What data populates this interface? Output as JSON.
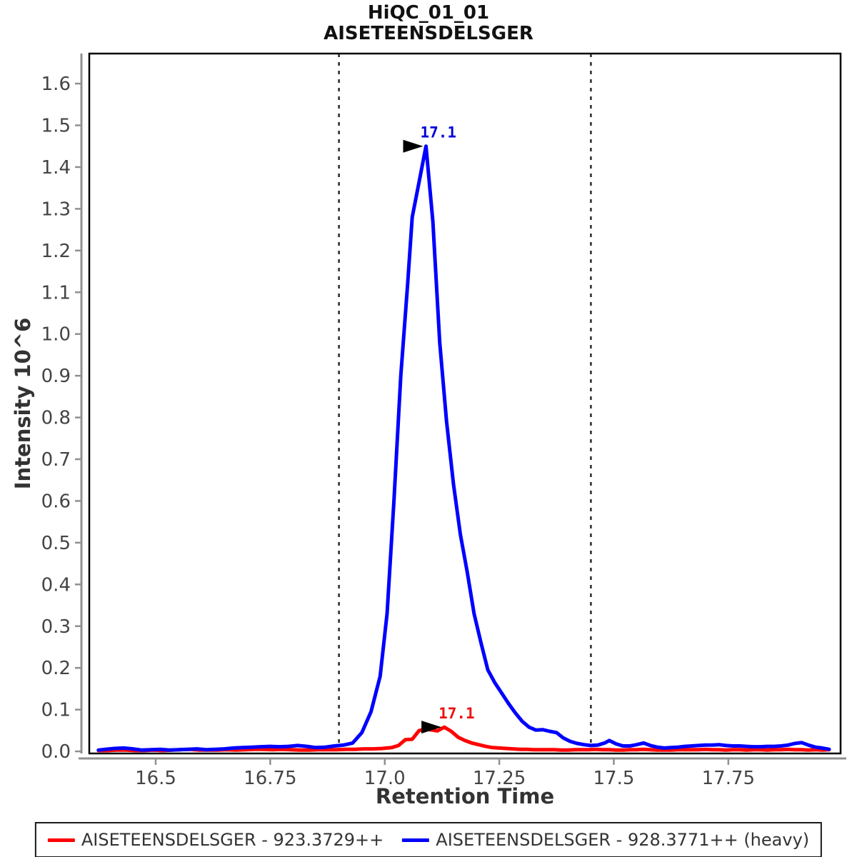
{
  "title": {
    "line1": "HiQC_01_01",
    "line2": "AISETEENSDELSGER"
  },
  "legend": {
    "items": [
      {
        "label": "AISETEENSDELSGER - 923.3729++",
        "color": "#FF0000"
      },
      {
        "label": "AISETEENSDELSGER - 928.3771++ (heavy)",
        "color": "#0000FF"
      }
    ]
  },
  "colors": {
    "light_trace": "#FF0000",
    "heavy_trace": "#0000FF",
    "axis_line": "#909090",
    "tick_text": "#444444",
    "plot_border": "#000000",
    "boundary_line": "#2a2a2a",
    "arrow": "#000000"
  },
  "chart_data": {
    "type": "line",
    "title": "HiQC_01_01 AISETEENSDELSGER",
    "xlabel": "Retention Time",
    "ylabel": "Intensity 10^6",
    "xlim": [
      16.355,
      17.995
    ],
    "ylim": [
      -0.005,
      1.672
    ],
    "grid": false,
    "legend_position": "bottom",
    "x_ticks": {
      "values": [
        16.5,
        16.75,
        17.0,
        17.25,
        17.5,
        17.75
      ],
      "labels": [
        "16.5",
        "16.75",
        "17.0",
        "17.25",
        "17.5",
        "17.75"
      ]
    },
    "y_ticks": {
      "values": [
        0.0,
        0.1,
        0.2,
        0.3,
        0.4,
        0.5,
        0.6,
        0.7,
        0.8,
        0.9,
        1.0,
        1.1,
        1.2,
        1.3,
        1.4,
        1.5,
        1.6
      ],
      "labels": [
        "0.0",
        "0.1",
        "0.2",
        "0.3",
        "0.4",
        "0.5",
        "0.6",
        "0.7",
        "0.8",
        "0.9",
        "1.0",
        "1.1",
        "1.2",
        "1.3",
        "1.4",
        "1.5",
        "1.6"
      ]
    },
    "peak_boundaries": [
      16.9,
      17.45
    ],
    "annotations": [
      {
        "label": "17.1",
        "x": 17.09,
        "y": 1.45,
        "color": "#0000DD",
        "series": "heavy"
      },
      {
        "label": "17.1",
        "x": 17.13,
        "y": 0.058,
        "color": "#EE1111",
        "series": "light"
      }
    ],
    "series": [
      {
        "name": "AISETEENSDELSGER - 923.3729++",
        "color": "#FF0000",
        "points": [
          [
            16.375,
            0.002
          ],
          [
            16.395,
            0.002
          ],
          [
            16.415,
            0.003
          ],
          [
            16.435,
            0.003
          ],
          [
            16.455,
            0.002
          ],
          [
            16.475,
            0.002
          ],
          [
            16.495,
            0.003
          ],
          [
            16.515,
            0.002
          ],
          [
            16.535,
            0.003
          ],
          [
            16.555,
            0.004
          ],
          [
            16.575,
            0.005
          ],
          [
            16.595,
            0.003
          ],
          [
            16.615,
            0.003
          ],
          [
            16.635,
            0.003
          ],
          [
            16.655,
            0.004
          ],
          [
            16.675,
            0.003
          ],
          [
            16.695,
            0.004
          ],
          [
            16.715,
            0.005
          ],
          [
            16.735,
            0.005
          ],
          [
            16.755,
            0.004
          ],
          [
            16.775,
            0.005
          ],
          [
            16.795,
            0.004
          ],
          [
            16.815,
            0.003
          ],
          [
            16.835,
            0.003
          ],
          [
            16.855,
            0.004
          ],
          [
            16.875,
            0.004
          ],
          [
            16.895,
            0.004
          ],
          [
            16.915,
            0.005
          ],
          [
            16.935,
            0.005
          ],
          [
            16.955,
            0.006
          ],
          [
            16.975,
            0.006
          ],
          [
            16.995,
            0.007
          ],
          [
            17.015,
            0.009
          ],
          [
            17.03,
            0.014
          ],
          [
            17.045,
            0.028
          ],
          [
            17.06,
            0.029
          ],
          [
            17.075,
            0.05
          ],
          [
            17.09,
            0.053
          ],
          [
            17.105,
            0.051
          ],
          [
            17.115,
            0.049
          ],
          [
            17.13,
            0.058
          ],
          [
            17.145,
            0.048
          ],
          [
            17.16,
            0.034
          ],
          [
            17.175,
            0.026
          ],
          [
            17.19,
            0.02
          ],
          [
            17.205,
            0.016
          ],
          [
            17.22,
            0.012
          ],
          [
            17.235,
            0.009
          ],
          [
            17.25,
            0.008
          ],
          [
            17.265,
            0.007
          ],
          [
            17.28,
            0.006
          ],
          [
            17.295,
            0.005
          ],
          [
            17.31,
            0.005
          ],
          [
            17.325,
            0.004
          ],
          [
            17.34,
            0.004
          ],
          [
            17.355,
            0.004
          ],
          [
            17.37,
            0.004
          ],
          [
            17.385,
            0.003
          ],
          [
            17.4,
            0.003
          ],
          [
            17.415,
            0.004
          ],
          [
            17.43,
            0.004
          ],
          [
            17.445,
            0.004
          ],
          [
            17.46,
            0.005
          ],
          [
            17.475,
            0.004
          ],
          [
            17.49,
            0.004
          ],
          [
            17.505,
            0.003
          ],
          [
            17.52,
            0.003
          ],
          [
            17.535,
            0.004
          ],
          [
            17.55,
            0.004
          ],
          [
            17.565,
            0.005
          ],
          [
            17.58,
            0.004
          ],
          [
            17.595,
            0.003
          ],
          [
            17.61,
            0.003
          ],
          [
            17.625,
            0.003
          ],
          [
            17.64,
            0.004
          ],
          [
            17.655,
            0.004
          ],
          [
            17.67,
            0.004
          ],
          [
            17.685,
            0.004
          ],
          [
            17.7,
            0.005
          ],
          [
            17.715,
            0.004
          ],
          [
            17.73,
            0.004
          ],
          [
            17.745,
            0.003
          ],
          [
            17.76,
            0.004
          ],
          [
            17.775,
            0.004
          ],
          [
            17.79,
            0.003
          ],
          [
            17.805,
            0.004
          ],
          [
            17.82,
            0.004
          ],
          [
            17.835,
            0.003
          ],
          [
            17.85,
            0.004
          ],
          [
            17.865,
            0.004
          ],
          [
            17.88,
            0.005
          ],
          [
            17.895,
            0.004
          ],
          [
            17.91,
            0.004
          ],
          [
            17.925,
            0.003
          ],
          [
            17.94,
            0.004
          ],
          [
            17.955,
            0.003
          ],
          [
            17.97,
            0.004
          ]
        ]
      },
      {
        "name": "AISETEENSDELSGER - 928.3771++ (heavy)",
        "color": "#0000FF",
        "points": [
          [
            16.375,
            0.003
          ],
          [
            16.39,
            0.005
          ],
          [
            16.41,
            0.007
          ],
          [
            16.43,
            0.008
          ],
          [
            16.45,
            0.006
          ],
          [
            16.47,
            0.003
          ],
          [
            16.49,
            0.004
          ],
          [
            16.51,
            0.005
          ],
          [
            16.53,
            0.003
          ],
          [
            16.55,
            0.004
          ],
          [
            16.57,
            0.005
          ],
          [
            16.59,
            0.006
          ],
          [
            16.61,
            0.004
          ],
          [
            16.63,
            0.005
          ],
          [
            16.65,
            0.006
          ],
          [
            16.67,
            0.008
          ],
          [
            16.69,
            0.009
          ],
          [
            16.71,
            0.01
          ],
          [
            16.73,
            0.011
          ],
          [
            16.75,
            0.012
          ],
          [
            16.77,
            0.011
          ],
          [
            16.79,
            0.012
          ],
          [
            16.81,
            0.014
          ],
          [
            16.83,
            0.012
          ],
          [
            16.85,
            0.009
          ],
          [
            16.87,
            0.01
          ],
          [
            16.89,
            0.013
          ],
          [
            16.91,
            0.015
          ],
          [
            16.93,
            0.02
          ],
          [
            16.95,
            0.045
          ],
          [
            16.97,
            0.095
          ],
          [
            16.99,
            0.18
          ],
          [
            17.005,
            0.33
          ],
          [
            17.02,
            0.6
          ],
          [
            17.035,
            0.9
          ],
          [
            17.05,
            1.12
          ],
          [
            17.06,
            1.28
          ],
          [
            17.075,
            1.365
          ],
          [
            17.09,
            1.45
          ],
          [
            17.105,
            1.27
          ],
          [
            17.12,
            0.98
          ],
          [
            17.135,
            0.79
          ],
          [
            17.15,
            0.64
          ],
          [
            17.165,
            0.52
          ],
          [
            17.18,
            0.43
          ],
          [
            17.195,
            0.33
          ],
          [
            17.21,
            0.26
          ],
          [
            17.225,
            0.195
          ],
          [
            17.24,
            0.165
          ],
          [
            17.255,
            0.14
          ],
          [
            17.27,
            0.115
          ],
          [
            17.285,
            0.092
          ],
          [
            17.3,
            0.072
          ],
          [
            17.315,
            0.058
          ],
          [
            17.33,
            0.051
          ],
          [
            17.345,
            0.052
          ],
          [
            17.36,
            0.048
          ],
          [
            17.375,
            0.045
          ],
          [
            17.39,
            0.032
          ],
          [
            17.405,
            0.024
          ],
          [
            17.42,
            0.019
          ],
          [
            17.435,
            0.016
          ],
          [
            17.45,
            0.014
          ],
          [
            17.465,
            0.015
          ],
          [
            17.48,
            0.02
          ],
          [
            17.49,
            0.026
          ],
          [
            17.505,
            0.018
          ],
          [
            17.52,
            0.013
          ],
          [
            17.535,
            0.013
          ],
          [
            17.55,
            0.016
          ],
          [
            17.565,
            0.02
          ],
          [
            17.58,
            0.014
          ],
          [
            17.595,
            0.01
          ],
          [
            17.61,
            0.008
          ],
          [
            17.625,
            0.009
          ],
          [
            17.64,
            0.01
          ],
          [
            17.655,
            0.012
          ],
          [
            17.67,
            0.013
          ],
          [
            17.685,
            0.014
          ],
          [
            17.7,
            0.015
          ],
          [
            17.715,
            0.015
          ],
          [
            17.73,
            0.016
          ],
          [
            17.745,
            0.014
          ],
          [
            17.76,
            0.013
          ],
          [
            17.775,
            0.013
          ],
          [
            17.79,
            0.012
          ],
          [
            17.805,
            0.011
          ],
          [
            17.82,
            0.011
          ],
          [
            17.835,
            0.012
          ],
          [
            17.85,
            0.012
          ],
          [
            17.865,
            0.013
          ],
          [
            17.88,
            0.015
          ],
          [
            17.895,
            0.019
          ],
          [
            17.91,
            0.021
          ],
          [
            17.925,
            0.015
          ],
          [
            17.94,
            0.01
          ],
          [
            17.955,
            0.008
          ],
          [
            17.97,
            0.005
          ]
        ]
      }
    ]
  }
}
